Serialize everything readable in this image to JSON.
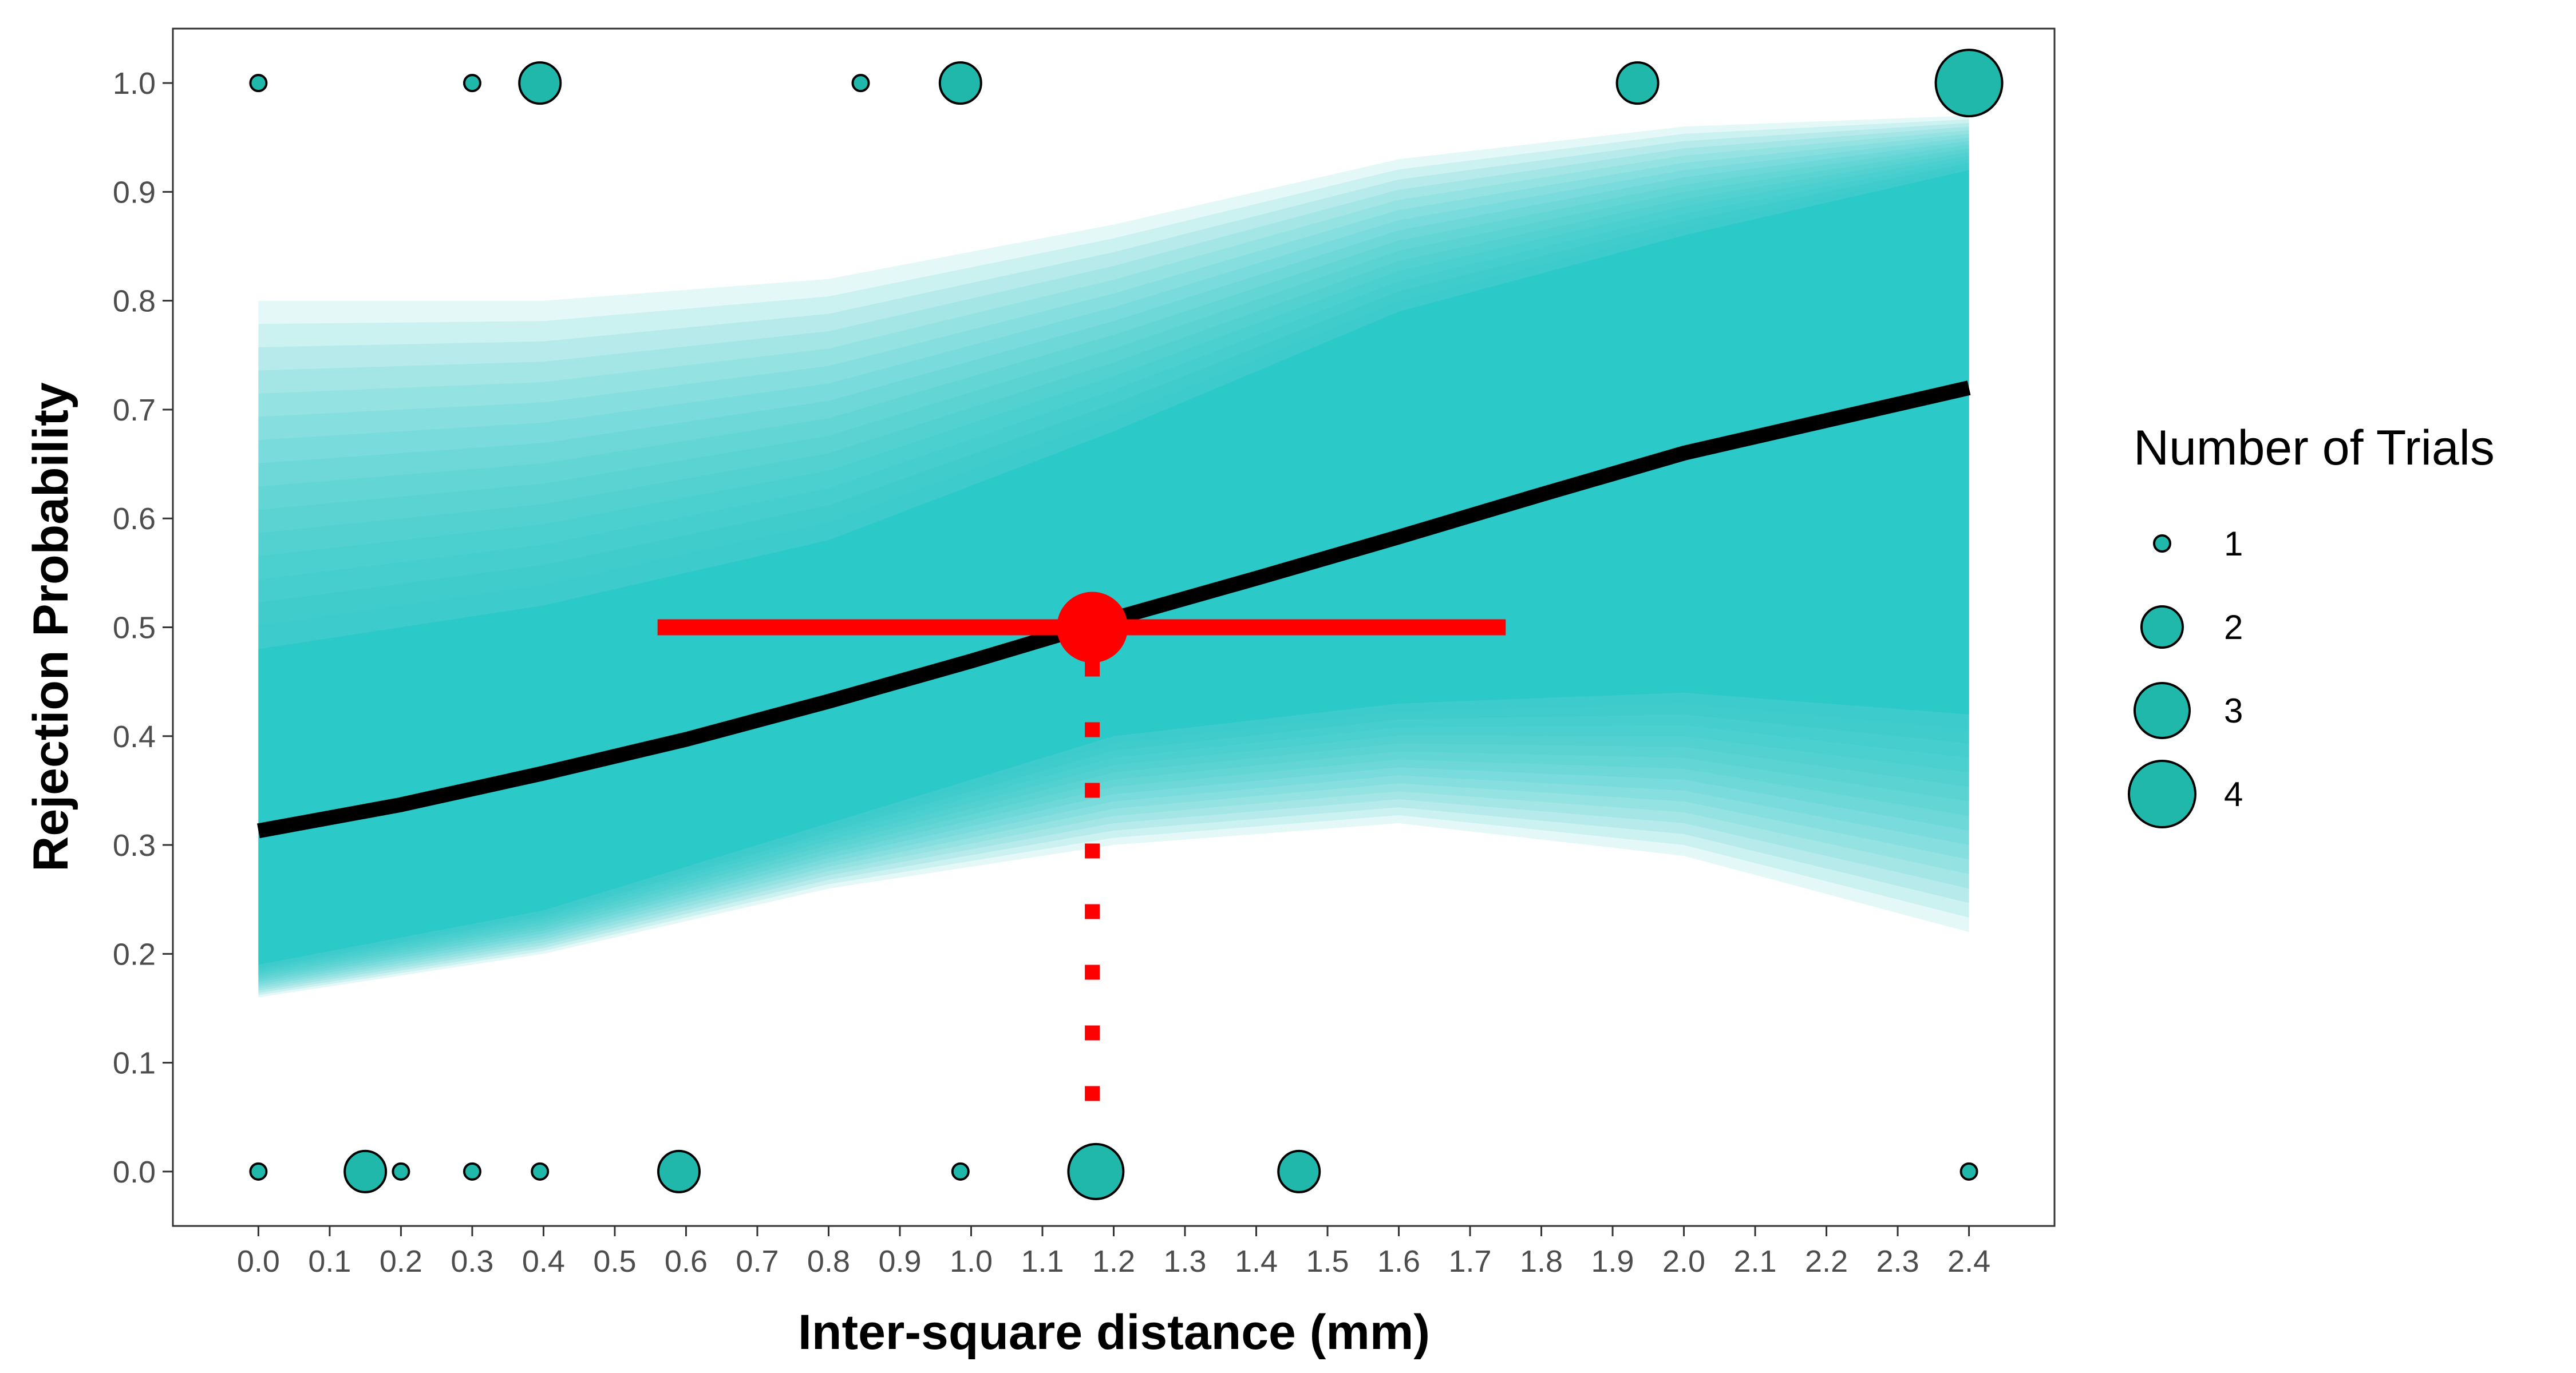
{
  "chart_data": {
    "type": "scatter",
    "xlabel": "Inter-square distance (mm)",
    "ylabel": "Rejection Probability",
    "xlim": [
      -0.12,
      2.52
    ],
    "ylim": [
      -0.05,
      1.05
    ],
    "x_ticks": [
      0.0,
      0.1,
      0.2,
      0.3,
      0.4,
      0.5,
      0.6,
      0.7,
      0.8,
      0.9,
      1.0,
      1.1,
      1.2,
      1.3,
      1.4,
      1.5,
      1.6,
      1.7,
      1.8,
      1.9,
      2.0,
      2.1,
      2.2,
      2.3,
      2.4
    ],
    "x_tick_labels": [
      "0.0",
      "0.1",
      "0.2",
      "0.3",
      "0.4",
      "0.5",
      "0.6",
      "0.7",
      "0.8",
      "0.9",
      "1.0",
      "1.1",
      "1.2",
      "1.3",
      "1.4",
      "1.5",
      "1.6",
      "1.7",
      "1.8",
      "1.9",
      "2.0",
      "2.1",
      "2.2",
      "2.3",
      "2.4"
    ],
    "y_ticks": [
      0.0,
      0.1,
      0.2,
      0.3,
      0.4,
      0.5,
      0.6,
      0.7,
      0.8,
      0.9,
      1.0
    ],
    "y_tick_labels": [
      "0.0",
      "0.1",
      "0.2",
      "0.3",
      "0.4",
      "0.5",
      "0.6",
      "0.7",
      "0.8",
      "0.9",
      "1.0"
    ],
    "grid": false,
    "legend": {
      "title": "Number of Trials",
      "placement": "right",
      "entries": [
        {
          "label": "1",
          "size": 1
        },
        {
          "label": "2",
          "size": 2
        },
        {
          "label": "3",
          "size": 3
        },
        {
          "label": "4",
          "size": 4
        }
      ]
    },
    "points": [
      {
        "x": 0.0,
        "y": 1.0,
        "n": 1
      },
      {
        "x": 0.3,
        "y": 1.0,
        "n": 1
      },
      {
        "x": 0.395,
        "y": 1.0,
        "n": 2
      },
      {
        "x": 0.845,
        "y": 1.0,
        "n": 1
      },
      {
        "x": 0.985,
        "y": 1.0,
        "n": 2
      },
      {
        "x": 1.935,
        "y": 1.0,
        "n": 2
      },
      {
        "x": 2.4,
        "y": 1.0,
        "n": 4
      },
      {
        "x": 0.0,
        "y": 0.0,
        "n": 1
      },
      {
        "x": 0.15,
        "y": 0.0,
        "n": 2
      },
      {
        "x": 0.2,
        "y": 0.0,
        "n": 1
      },
      {
        "x": 0.3,
        "y": 0.0,
        "n": 1
      },
      {
        "x": 0.395,
        "y": 0.0,
        "n": 1
      },
      {
        "x": 0.59,
        "y": 0.0,
        "n": 2
      },
      {
        "x": 0.985,
        "y": 0.0,
        "n": 1
      },
      {
        "x": 1.175,
        "y": 0.0,
        "n": 3
      },
      {
        "x": 1.46,
        "y": 0.0,
        "n": 2
      },
      {
        "x": 2.4,
        "y": 0.0,
        "n": 1
      }
    ],
    "fit_curve": {
      "x": [
        0.0,
        0.2,
        0.4,
        0.6,
        0.8,
        1.0,
        1.2,
        1.4,
        1.6,
        1.8,
        2.0,
        2.2,
        2.4
      ],
      "y": [
        0.313,
        0.337,
        0.366,
        0.397,
        0.432,
        0.469,
        0.508,
        0.545,
        0.583,
        0.622,
        0.66,
        0.69,
        0.72
      ]
    },
    "posterior_band": {
      "x": [
        0.0,
        0.4,
        0.8,
        1.2,
        1.6,
        2.0,
        2.4
      ],
      "outer_lower": [
        0.16,
        0.2,
        0.26,
        0.3,
        0.32,
        0.29,
        0.22
      ],
      "outer_upper": [
        0.8,
        0.8,
        0.82,
        0.87,
        0.93,
        0.96,
        0.97
      ],
      "inner_lower": [
        0.19,
        0.24,
        0.32,
        0.4,
        0.43,
        0.44,
        0.42
      ],
      "inner_upper": [
        0.48,
        0.52,
        0.58,
        0.68,
        0.79,
        0.86,
        0.92
      ]
    },
    "threshold": {
      "x": 1.17,
      "y": 0.5,
      "interval": [
        0.56,
        1.75
      ]
    },
    "colors": {
      "point_fill": "#20b8aa",
      "band": "#22c9c9",
      "fit_line": "#000000",
      "threshold": "#ff0000"
    }
  }
}
